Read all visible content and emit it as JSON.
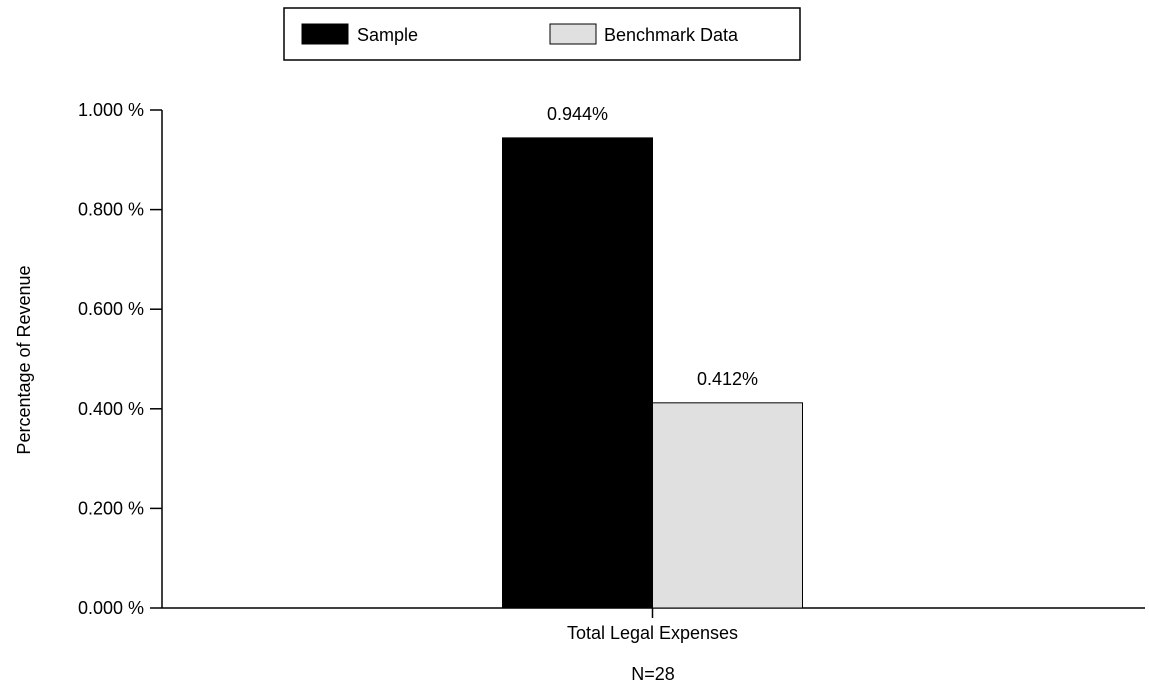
{
  "chart_data": {
    "type": "bar",
    "categories": [
      "Total Legal Expenses"
    ],
    "series": [
      {
        "name": "Sample",
        "values": [
          0.944
        ],
        "color": "#000000",
        "labels": [
          "0.944%"
        ]
      },
      {
        "name": "Benchmark Data",
        "values": [
          0.412
        ],
        "color": "#e0e0e0",
        "labels": [
          "0.412%"
        ]
      }
    ],
    "ylabel": "Percentage of Revenue",
    "xlabel": "",
    "ylim": [
      0,
      1.0
    ],
    "yticks": [
      {
        "value": 0.0,
        "label": "0.000 %"
      },
      {
        "value": 0.2,
        "label": "0.200 %"
      },
      {
        "value": 0.4,
        "label": "0.400 %"
      },
      {
        "value": 0.6,
        "label": "0.600 %"
      },
      {
        "value": 0.8,
        "label": "0.800 %"
      },
      {
        "value": 1.0,
        "label": "1.000 %"
      }
    ],
    "footnote": "N=28",
    "legend_position": "top-center",
    "grid": false
  }
}
